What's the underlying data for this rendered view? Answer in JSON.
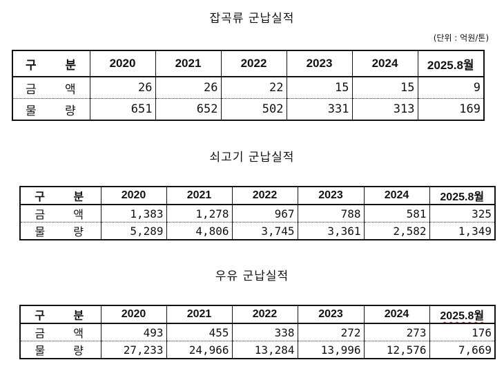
{
  "unit_note": "(단위 : 억원/톤)",
  "header": {
    "label": "구 분",
    "years": [
      "2020",
      "2021",
      "2022",
      "2023",
      "2024",
      "2025.8월"
    ]
  },
  "tables": [
    {
      "title": "잡곡류 군납실적",
      "rows": [
        {
          "label": "금 액",
          "values": [
            "26",
            "26",
            "22",
            "15",
            "15",
            "9"
          ]
        },
        {
          "label": "물 량",
          "values": [
            "651",
            "652",
            "502",
            "331",
            "313",
            "169"
          ]
        }
      ]
    },
    {
      "title": "쇠고기 군납실적",
      "rows": [
        {
          "label": "금 액",
          "values": [
            "1,383",
            "1,278",
            "967",
            "788",
            "581",
            "325"
          ]
        },
        {
          "label": "물 량",
          "values": [
            "5,289",
            "4,806",
            "3,745",
            "3,361",
            "2,582",
            "1,349"
          ]
        }
      ]
    },
    {
      "title": "우유 군납실적",
      "rows": [
        {
          "label": "금 액",
          "values": [
            "493",
            "455",
            "338",
            "272",
            "273",
            "176"
          ]
        },
        {
          "label": "물 량",
          "values": [
            "27,233",
            "24,966",
            "13,284",
            "13,996",
            "12,576",
            "7,669"
          ]
        }
      ]
    }
  ]
}
